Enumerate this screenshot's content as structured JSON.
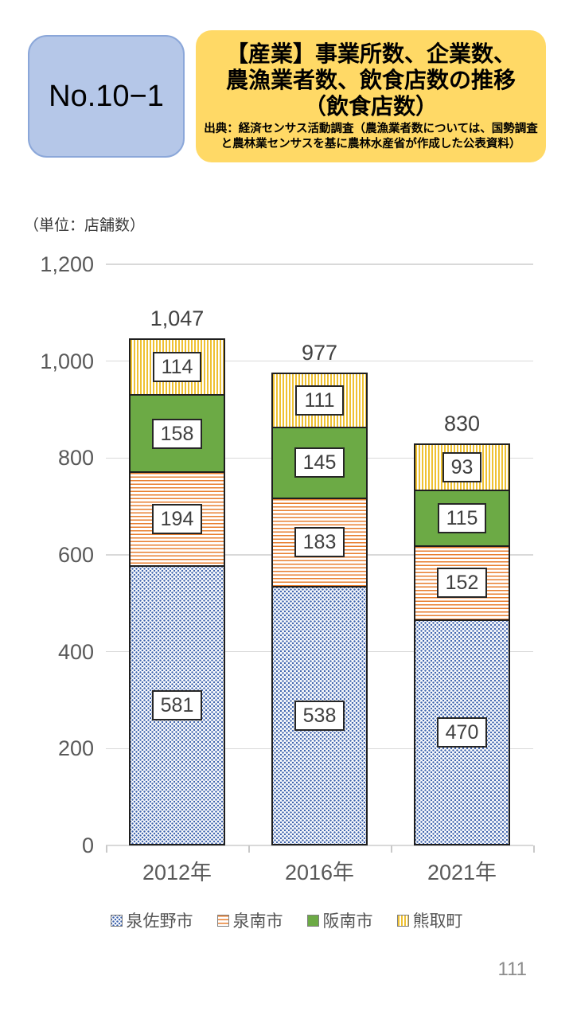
{
  "header": {
    "no_label": "No.10−1",
    "title_lines": [
      "【産業】事業所数、企業数、",
      "農漁業者数、飲食店数の推移",
      "（飲食店数）"
    ],
    "source_lines": [
      "出典：経済センサス活動調査（農漁業者数については、国勢調査",
      "と農林業センサスを基に農林水産省が作成した公表資料）"
    ]
  },
  "chart_data": {
    "type": "bar",
    "stacked": true,
    "title": "【産業】事業所数、企業数、農漁業者数、飲食店数の推移（飲食店数）",
    "unit_label": "（単位：店舗数）",
    "categories": [
      "2012年",
      "2016年",
      "2021年"
    ],
    "series": [
      {
        "name": "泉佐野市",
        "pattern": "dots-blue",
        "color": "#3d63ad",
        "values": [
          581,
          538,
          470
        ]
      },
      {
        "name": "泉南市",
        "pattern": "hlines-orange",
        "color": "#e87e2e",
        "values": [
          194,
          183,
          152
        ]
      },
      {
        "name": "阪南市",
        "pattern": "solid-green",
        "color": "#6caa45",
        "values": [
          158,
          145,
          115
        ]
      },
      {
        "name": "熊取町",
        "pattern": "vlines-yellow",
        "color": "#efc132",
        "values": [
          114,
          111,
          93
        ]
      }
    ],
    "totals": [
      1047,
      977,
      830
    ],
    "totals_display": [
      "1,047",
      "977",
      "830"
    ],
    "ylim": [
      0,
      1200
    ],
    "y_ticks": [
      0,
      200,
      400,
      600,
      800,
      1000,
      1200
    ],
    "y_tick_labels": [
      "0",
      "200",
      "400",
      "600",
      "800",
      "1,000",
      "1,200"
    ],
    "grid": true,
    "legend_position": "bottom"
  },
  "footer": {
    "page_number": "111"
  }
}
